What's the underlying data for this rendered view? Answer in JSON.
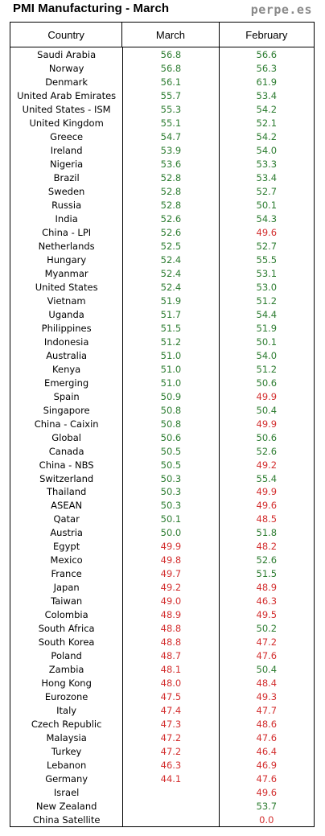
{
  "title": "PMI Manufacturing - March",
  "brand": "perpe.es",
  "headers": {
    "country": "Country",
    "march": "March",
    "february": "February"
  },
  "colors": {
    "up": "#2e7d32",
    "down": "#d32f2f"
  },
  "rows": [
    {
      "country": "Saudi Arabia",
      "march": "56.8",
      "feb": "56.6"
    },
    {
      "country": "Norway",
      "march": "56.8",
      "feb": "56.3"
    },
    {
      "country": "Denmark",
      "march": "56.1",
      "feb": "61.9"
    },
    {
      "country": "United Arab Emirates",
      "march": "55.7",
      "feb": "53.4"
    },
    {
      "country": "United States - ISM",
      "march": "55.3",
      "feb": "54.2"
    },
    {
      "country": "United Kingdom",
      "march": "55.1",
      "feb": "52.1"
    },
    {
      "country": "Greece",
      "march": "54.7",
      "feb": "54.2"
    },
    {
      "country": "Ireland",
      "march": "53.9",
      "feb": "54.0"
    },
    {
      "country": "Nigeria",
      "march": "53.6",
      "feb": "53.3"
    },
    {
      "country": "Brazil",
      "march": "52.8",
      "feb": "53.4"
    },
    {
      "country": "Sweden",
      "march": "52.8",
      "feb": "52.7"
    },
    {
      "country": "Russia",
      "march": "52.8",
      "feb": "50.1"
    },
    {
      "country": "India",
      "march": "52.6",
      "feb": "54.3"
    },
    {
      "country": "China - LPI",
      "march": "52.6",
      "feb": "49.6"
    },
    {
      "country": "Netherlands",
      "march": "52.5",
      "feb": "52.7"
    },
    {
      "country": "Hungary",
      "march": "52.4",
      "feb": "55.5"
    },
    {
      "country": "Myanmar",
      "march": "52.4",
      "feb": "53.1"
    },
    {
      "country": "United States",
      "march": "52.4",
      "feb": "53.0"
    },
    {
      "country": "Vietnam",
      "march": "51.9",
      "feb": "51.2"
    },
    {
      "country": "Uganda",
      "march": "51.7",
      "feb": "54.4"
    },
    {
      "country": "Philippines",
      "march": "51.5",
      "feb": "51.9"
    },
    {
      "country": "Indonesia",
      "march": "51.2",
      "feb": "50.1"
    },
    {
      "country": "Australia",
      "march": "51.0",
      "feb": "54.0"
    },
    {
      "country": "Kenya",
      "march": "51.0",
      "feb": "51.2"
    },
    {
      "country": "Emerging",
      "march": "51.0",
      "feb": "50.6"
    },
    {
      "country": "Spain",
      "march": "50.9",
      "feb": "49.9"
    },
    {
      "country": "Singapore",
      "march": "50.8",
      "feb": "50.4"
    },
    {
      "country": "China - Caixin",
      "march": "50.8",
      "feb": "49.9"
    },
    {
      "country": "Global",
      "march": "50.6",
      "feb": "50.6"
    },
    {
      "country": "Canada",
      "march": "50.5",
      "feb": "52.6"
    },
    {
      "country": "China - NBS",
      "march": "50.5",
      "feb": "49.2"
    },
    {
      "country": "Switzerland",
      "march": "50.3",
      "feb": "55.4"
    },
    {
      "country": "Thailand",
      "march": "50.3",
      "feb": "49.9"
    },
    {
      "country": "ASEAN",
      "march": "50.3",
      "feb": "49.6"
    },
    {
      "country": "Qatar",
      "march": "50.1",
      "feb": "48.5"
    },
    {
      "country": "Austria",
      "march": "50.0",
      "feb": "51.8"
    },
    {
      "country": "Egypt",
      "march": "49.9",
      "feb": "48.2"
    },
    {
      "country": "Mexico",
      "march": "49.8",
      "feb": "52.6"
    },
    {
      "country": "France",
      "march": "49.7",
      "feb": "51.5"
    },
    {
      "country": "Japan",
      "march": "49.2",
      "feb": "48.9"
    },
    {
      "country": "Taiwan",
      "march": "49.0",
      "feb": "46.3"
    },
    {
      "country": "Colombia",
      "march": "48.9",
      "feb": "49.5"
    },
    {
      "country": "South Africa",
      "march": "48.8",
      "feb": "50.2"
    },
    {
      "country": "South Korea",
      "march": "48.8",
      "feb": "47.2"
    },
    {
      "country": "Poland",
      "march": "48.7",
      "feb": "47.6"
    },
    {
      "country": "Zambia",
      "march": "48.1",
      "feb": "50.4"
    },
    {
      "country": "Hong Kong",
      "march": "48.0",
      "feb": "48.4"
    },
    {
      "country": "Eurozone",
      "march": "47.5",
      "feb": "49.3"
    },
    {
      "country": "Italy",
      "march": "47.4",
      "feb": "47.7"
    },
    {
      "country": "Czech Republic",
      "march": "47.3",
      "feb": "48.6"
    },
    {
      "country": "Malaysia",
      "march": "47.2",
      "feb": "47.6"
    },
    {
      "country": "Turkey",
      "march": "47.2",
      "feb": "46.4"
    },
    {
      "country": "Lebanon",
      "march": "46.3",
      "feb": "46.9"
    },
    {
      "country": "Germany",
      "march": "44.1",
      "feb": "47.6"
    },
    {
      "country": "Israel",
      "march": "",
      "feb": "49.6"
    },
    {
      "country": "New Zealand",
      "march": "",
      "feb": "53.7"
    },
    {
      "country": "China Satellite",
      "march": "",
      "feb": "0.0"
    }
  ]
}
